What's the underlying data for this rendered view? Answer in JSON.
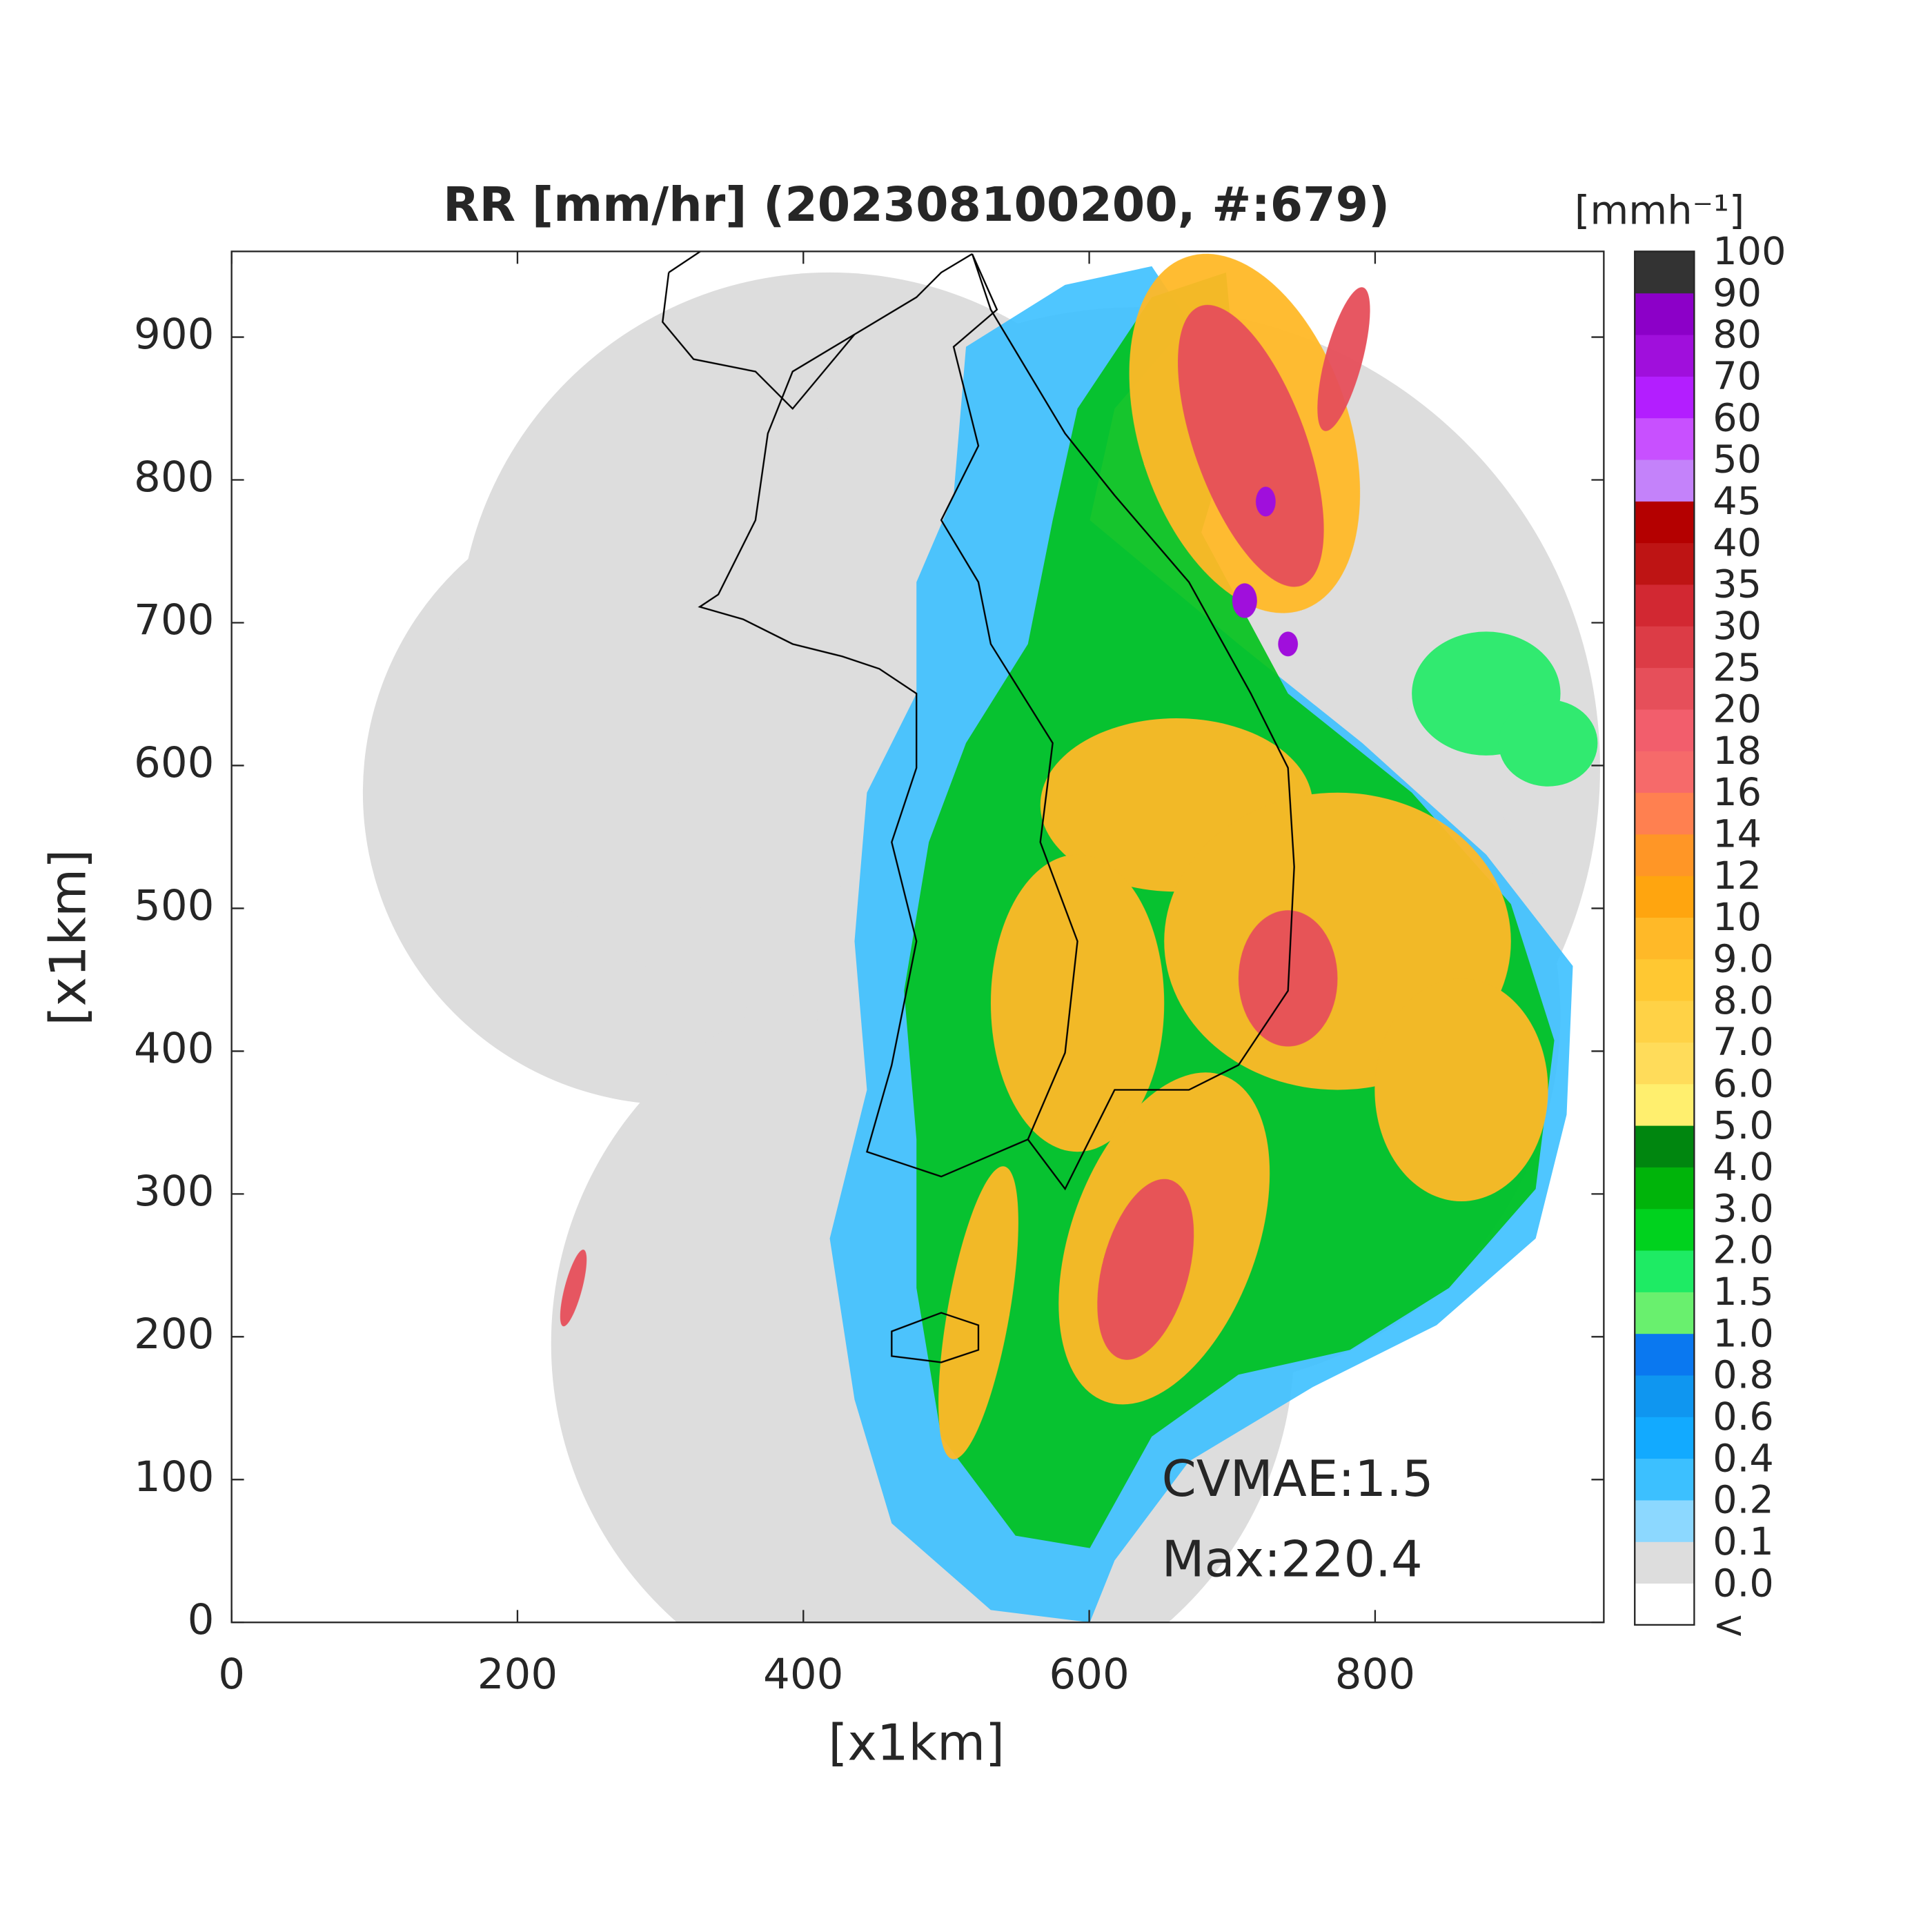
{
  "chart_data": {
    "type": "heatmap",
    "title": "RR [mm/hr] (202308100200, #:679)",
    "xlabel": "[x1km]",
    "ylabel": "[x1km]",
    "xlim": [
      0,
      960
    ],
    "ylim": [
      0,
      960
    ],
    "xticks": [
      0,
      200,
      400,
      600,
      800
    ],
    "yticks": [
      0,
      100,
      200,
      300,
      400,
      500,
      600,
      700,
      800,
      900
    ],
    "colorbar": {
      "label": "[mmh⁻¹]",
      "ticks": [
        "<",
        "0.0",
        "0.1",
        "0.2",
        "0.4",
        "0.6",
        "0.8",
        "1.0",
        "1.5",
        "2.0",
        "3.0",
        "4.0",
        "5.0",
        "6.0",
        "7.0",
        "8.0",
        "9.0",
        "10",
        "12",
        "14",
        "16",
        "18",
        "20",
        "25",
        "30",
        "35",
        "40",
        "45",
        "50",
        "60",
        "70",
        "80",
        "90",
        "100"
      ],
      "colors": [
        "#ffffff",
        "#dddddd",
        "#8cd8ff",
        "#3cc0ff",
        "#12aaff",
        "#0f96f0",
        "#0a78f0",
        "#69f06e",
        "#1eeb64",
        "#00d21e",
        "#00b40a",
        "#00860f",
        "#ffef6e",
        "#ffdc5a",
        "#ffd246",
        "#ffc832",
        "#ffb928",
        "#ffa50f",
        "#ff9626",
        "#ff8050",
        "#f66a6a",
        "#f25e6c",
        "#e64f5a",
        "#dc3c46",
        "#d22832",
        "#be1414",
        "#b40000",
        "#c482fa",
        "#c850ff",
        "#b31eff",
        "#a00fdc",
        "#8c00c8",
        "#333333"
      ]
    },
    "annotations": [
      "CVMAE:1.5",
      "Max:220.4"
    ]
  }
}
